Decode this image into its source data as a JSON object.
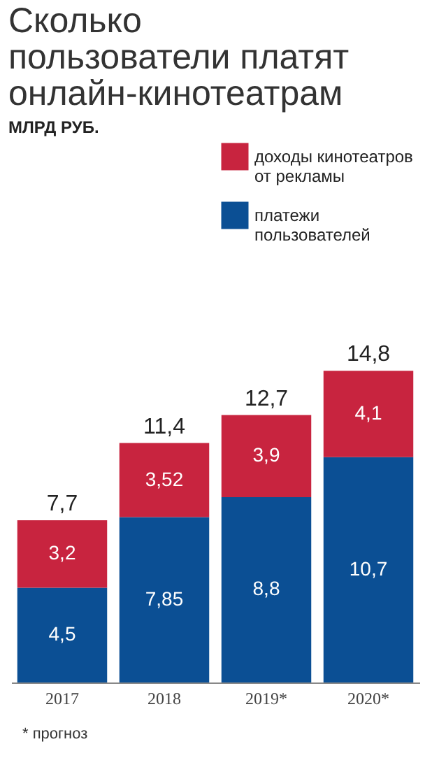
{
  "chart_data": {
    "type": "bar",
    "title": "Сколько пользователи платят онлайн-кинотеатрам",
    "subtitle": "МЛРД РУБ.",
    "categories": [
      "2017",
      "2018",
      "2019*",
      "2020*"
    ],
    "stacked": true,
    "legend": "top right",
    "annotations": [
      "* прогноз"
    ],
    "series": [
      {
        "name": "платежи пользователей",
        "color": "#0b4f94",
        "values": [
          4.5,
          7.85,
          8.8,
          10.7
        ],
        "value_labels": [
          "4,5",
          "7,85",
          "8,8",
          "10,7"
        ]
      },
      {
        "name": "доходы кинотеатров от рекламы",
        "color": "#c8243f",
        "values": [
          3.2,
          3.52,
          3.9,
          4.1
        ],
        "value_labels": [
          "3,2",
          "3,52",
          "3,9",
          "4,1"
        ]
      }
    ],
    "totals": [
      "7,7",
      "11,4",
      "12,7",
      "14,8"
    ]
  }
}
